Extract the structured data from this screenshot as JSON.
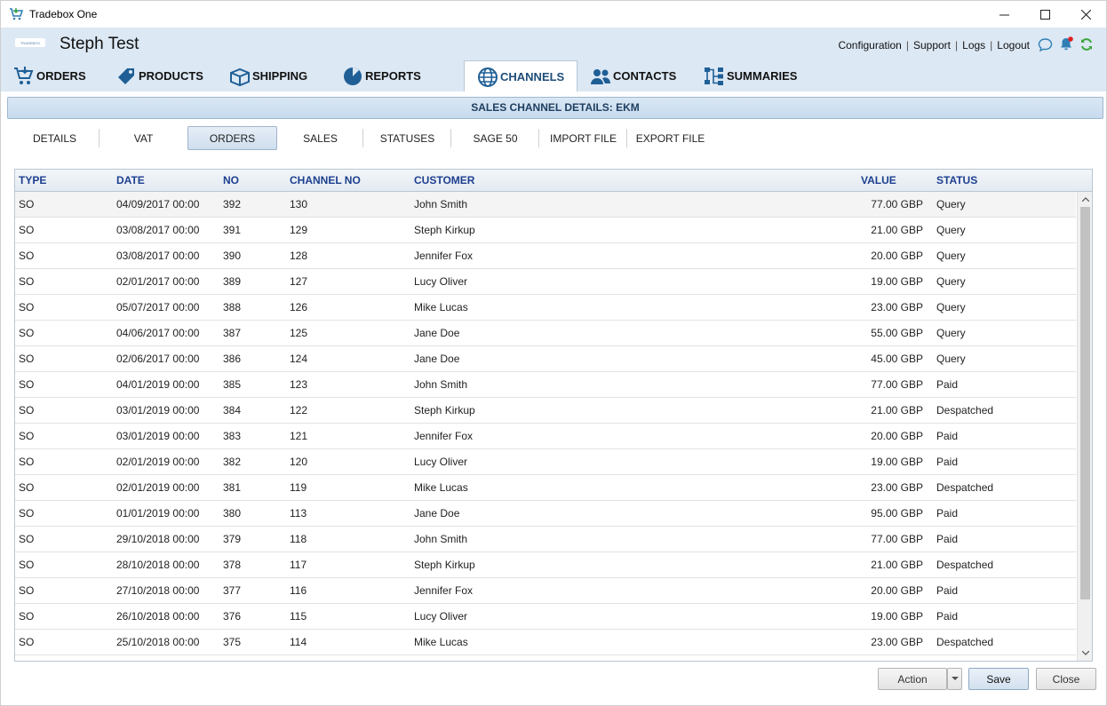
{
  "window": {
    "title": "Tradebox One",
    "controls": {
      "minimize": "—",
      "maximize": "☐",
      "close": "✕"
    }
  },
  "header": {
    "logo_text": "TRADEBOX",
    "user_title": "Steph Test",
    "links": [
      "Configuration",
      "Support",
      "Logs",
      "Logout"
    ],
    "link_separator": "|"
  },
  "tabs": [
    {
      "label": "ORDERS",
      "icon": "cart-icon"
    },
    {
      "label": "PRODUCTS",
      "icon": "tag-icon"
    },
    {
      "label": "SHIPPING",
      "icon": "box-icon"
    },
    {
      "label": "REPORTS",
      "icon": "pie-chart-icon"
    },
    {
      "label": "CHANNELS",
      "icon": "globe-icon",
      "active": true
    },
    {
      "label": "CONTACTS",
      "icon": "people-icon"
    },
    {
      "label": "SUMMARIES",
      "icon": "hierarchy-icon"
    }
  ],
  "section_title": "SALES CHANNEL DETAILS: EKM",
  "subtabs": [
    {
      "label": "DETAILS"
    },
    {
      "label": "VAT"
    },
    {
      "label": "ORDERS",
      "active": true
    },
    {
      "label": "SALES"
    },
    {
      "label": "STATUSES"
    },
    {
      "label": "SAGE 50"
    },
    {
      "label": "IMPORT FILE"
    },
    {
      "label": "EXPORT FILE"
    }
  ],
  "grid": {
    "columns": [
      "TYPE",
      "DATE",
      "NO",
      "CHANNEL NO",
      "CUSTOMER",
      "VALUE",
      "STATUS"
    ],
    "rows": [
      [
        "SO",
        "04/09/2017 00:00",
        "392",
        "130",
        "John Smith",
        "77.00  GBP",
        "Query"
      ],
      [
        "SO",
        "03/08/2017 00:00",
        "391",
        "129",
        "Steph Kirkup",
        "21.00  GBP",
        "Query"
      ],
      [
        "SO",
        "03/08/2017 00:00",
        "390",
        "128",
        "Jennifer Fox",
        "20.00  GBP",
        "Query"
      ],
      [
        "SO",
        "02/01/2017 00:00",
        "389",
        "127",
        "Lucy Oliver",
        "19.00  GBP",
        "Query"
      ],
      [
        "SO",
        "05/07/2017 00:00",
        "388",
        "126",
        "Mike Lucas",
        "23.00  GBP",
        "Query"
      ],
      [
        "SO",
        "04/06/2017 00:00",
        "387",
        "125",
        "Jane Doe",
        "55.00  GBP",
        "Query"
      ],
      [
        "SO",
        "02/06/2017 00:00",
        "386",
        "124",
        "Jane Doe",
        "45.00  GBP",
        "Query"
      ],
      [
        "SO",
        "04/01/2019 00:00",
        "385",
        "123",
        "John Smith",
        "77.00  GBP",
        "Paid"
      ],
      [
        "SO",
        "03/01/2019 00:00",
        "384",
        "122",
        "Steph Kirkup",
        "21.00  GBP",
        "Despatched"
      ],
      [
        "SO",
        "03/01/2019 00:00",
        "383",
        "121",
        "Jennifer Fox",
        "20.00  GBP",
        "Paid"
      ],
      [
        "SO",
        "02/01/2019 00:00",
        "382",
        "120",
        "Lucy Oliver",
        "19.00  GBP",
        "Paid"
      ],
      [
        "SO",
        "02/01/2019 00:00",
        "381",
        "119",
        "Mike Lucas",
        "23.00  GBP",
        "Despatched"
      ],
      [
        "SO",
        "01/01/2019 00:00",
        "380",
        "113",
        "Jane Doe",
        "95.00  GBP",
        "Paid"
      ],
      [
        "SO",
        "29/10/2018 00:00",
        "379",
        "118",
        "John Smith",
        "77.00  GBP",
        "Paid"
      ],
      [
        "SO",
        "28/10/2018 00:00",
        "378",
        "117",
        "Steph Kirkup",
        "21.00  GBP",
        "Despatched"
      ],
      [
        "SO",
        "27/10/2018 00:00",
        "377",
        "116",
        "Jennifer Fox",
        "20.00  GBP",
        "Paid"
      ],
      [
        "SO",
        "26/10/2018 00:00",
        "376",
        "115",
        "Lucy Oliver",
        "19.00  GBP",
        "Paid"
      ],
      [
        "SO",
        "25/10/2018 00:00",
        "375",
        "114",
        "Mike Lucas",
        "23.00  GBP",
        "Despatched"
      ]
    ]
  },
  "buttons": {
    "action": "Action",
    "save": "Save",
    "close": "Close"
  },
  "colors": {
    "header_bg": "#dce8f4",
    "accent": "#1f4e79",
    "column_header_text": "#1c3f8f",
    "notification_dot": "#e02020",
    "refresh_green": "#3aa63a"
  }
}
